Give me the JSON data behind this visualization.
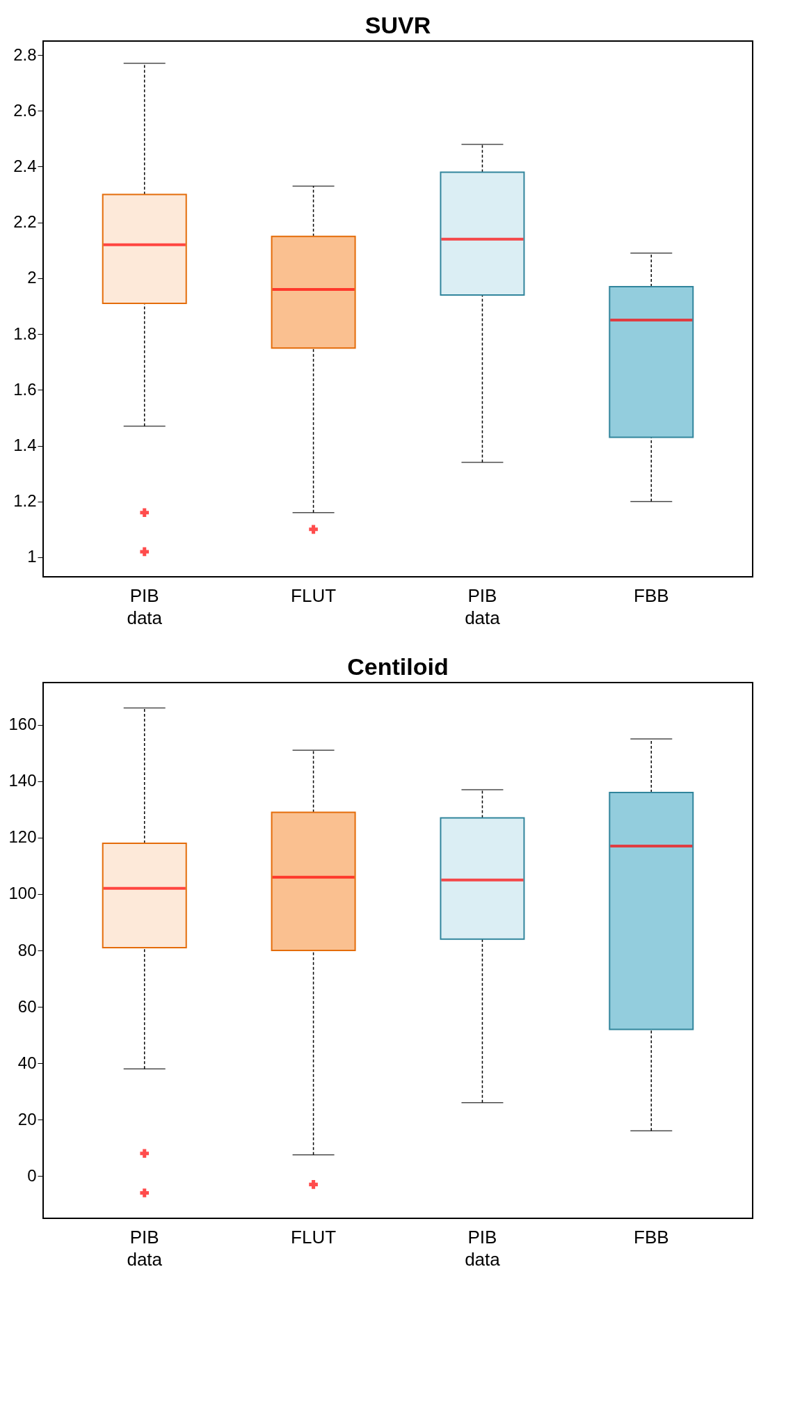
{
  "chart_data": [
    {
      "type": "box",
      "title": "SUVR",
      "categories": [
        "PIB\ndata",
        "FLUT",
        "PIB\ndata",
        "FBB"
      ],
      "colors": [
        "#fde9d9",
        "#fac090",
        "#dbeef4",
        "#93cddd"
      ],
      "marker": "cross",
      "grid": false,
      "ylim": [
        0.93,
        2.85
      ],
      "yticks": [
        1,
        1.2,
        1.4,
        1.6,
        1.8,
        2,
        2.2,
        2.4,
        2.6,
        2.8
      ],
      "boxes": [
        {
          "low": 1.47,
          "q1": 1.91,
          "median": 2.12,
          "q3": 2.3,
          "high": 2.77,
          "outliers": [
            1.16,
            1.02
          ]
        },
        {
          "low": 1.16,
          "q1": 1.75,
          "median": 1.96,
          "q3": 2.15,
          "high": 2.33,
          "outliers": [
            1.1
          ]
        },
        {
          "low": 1.34,
          "q1": 1.94,
          "median": 2.14,
          "q3": 2.38,
          "high": 2.48
        },
        {
          "low": 1.2,
          "q1": 1.43,
          "median": 1.85,
          "q3": 1.97,
          "high": 2.09
        }
      ]
    },
    {
      "type": "box",
      "title": "Centiloid",
      "categories": [
        "PIB\ndata",
        "FLUT",
        "PIB\ndata",
        "FBB"
      ],
      "colors": [
        "#fde9d9",
        "#fac090",
        "#dbeef4",
        "#93cddd"
      ],
      "marker": "cross",
      "grid": false,
      "ylim": [
        -15,
        175
      ],
      "yticks": [
        0,
        20,
        40,
        60,
        80,
        100,
        120,
        140,
        160
      ],
      "boxes": [
        {
          "low": 38,
          "q1": 81,
          "median": 102,
          "q3": 118,
          "high": 166,
          "outliers": [
            8,
            -6
          ]
        },
        {
          "low": 7.5,
          "q1": 80,
          "median": 106,
          "q3": 129,
          "high": 151,
          "outliers": [
            -3
          ]
        },
        {
          "low": 26,
          "q1": 84,
          "median": 105,
          "q3": 127,
          "high": 137
        },
        {
          "low": 16,
          "q1": 52,
          "median": 117,
          "q3": 136,
          "high": 155
        }
      ]
    }
  ]
}
